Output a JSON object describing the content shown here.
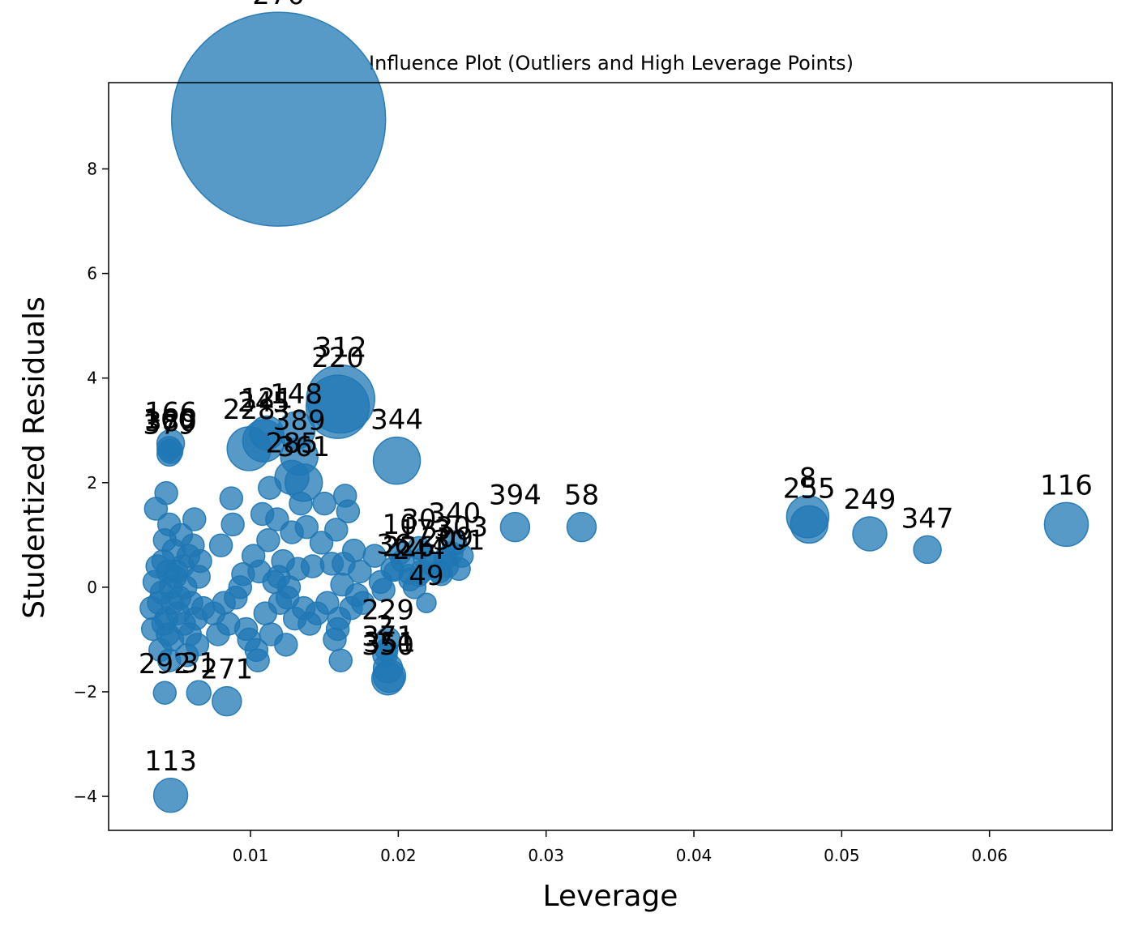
{
  "chart_data": {
    "type": "scatter",
    "title": "Influence Plot (Outliers and High Leverage Points)",
    "xlabel": "Leverage",
    "ylabel": "Studentized Residuals",
    "xlim": [
      0.0004,
      0.0683
    ],
    "ylim": [
      -4.65,
      9.65
    ],
    "xticks": [
      0.01,
      0.02,
      0.03,
      0.04,
      0.05,
      0.06
    ],
    "xtick_labels": [
      "0.01",
      "0.02",
      "0.03",
      "0.04",
      "0.05",
      "0.06"
    ],
    "yticks": [
      -4,
      -2,
      0,
      2,
      4,
      6,
      8
    ],
    "ytick_labels": [
      "−4",
      "−2",
      "0",
      "2",
      "4",
      "6",
      "8"
    ],
    "grid": false,
    "color": "#1f77b4",
    "labeled_points": [
      {
        "label": "270",
        "x": 0.0119,
        "y": 8.95,
        "size": 4.4
      },
      {
        "label": "312",
        "x": 0.0161,
        "y": 3.6,
        "size": 1.4
      },
      {
        "label": "220",
        "x": 0.0159,
        "y": 3.45,
        "size": 1.3
      },
      {
        "label": "166",
        "x": 0.0046,
        "y": 2.75,
        "size": 0.55
      },
      {
        "label": "160",
        "x": 0.0045,
        "y": 2.65,
        "size": 0.5
      },
      {
        "label": "380",
        "x": 0.0046,
        "y": 2.6,
        "size": 0.5
      },
      {
        "label": "379",
        "x": 0.0045,
        "y": 2.55,
        "size": 0.5
      },
      {
        "label": "121",
        "x": 0.0111,
        "y": 2.95,
        "size": 0.7
      },
      {
        "label": "148",
        "x": 0.0131,
        "y": 3.0,
        "size": 0.75
      },
      {
        "label": "245",
        "x": 0.0109,
        "y": 2.8,
        "size": 0.85
      },
      {
        "label": "228",
        "x": 0.0099,
        "y": 2.65,
        "size": 0.9
      },
      {
        "label": "389",
        "x": 0.0133,
        "y": 2.5,
        "size": 0.75
      },
      {
        "label": "285",
        "x": 0.0128,
        "y": 2.1,
        "size": 0.7
      },
      {
        "label": "361",
        "x": 0.0136,
        "y": 2.0,
        "size": 0.75
      },
      {
        "label": "344",
        "x": 0.0199,
        "y": 2.42,
        "size": 0.95
      },
      {
        "label": "394",
        "x": 0.0279,
        "y": 1.15,
        "size": 0.6
      },
      {
        "label": "58",
        "x": 0.0324,
        "y": 1.15,
        "size": 0.6
      },
      {
        "label": "340",
        "x": 0.0238,
        "y": 0.85,
        "size": 0.5
      },
      {
        "label": "30",
        "x": 0.0214,
        "y": 0.75,
        "size": 0.45
      },
      {
        "label": "10",
        "x": 0.0201,
        "y": 0.65,
        "size": 0.45
      },
      {
        "label": "173",
        "x": 0.0218,
        "y": 0.55,
        "size": 0.45
      },
      {
        "label": "303",
        "x": 0.0243,
        "y": 0.6,
        "size": 0.45
      },
      {
        "label": "209",
        "x": 0.0233,
        "y": 0.4,
        "size": 0.45
      },
      {
        "label": "301",
        "x": 0.0241,
        "y": 0.35,
        "size": 0.45
      },
      {
        "label": "36",
        "x": 0.0197,
        "y": 0.3,
        "size": 0.4
      },
      {
        "label": "226",
        "x": 0.0207,
        "y": 0.25,
        "size": 0.4
      },
      {
        "label": "244",
        "x": 0.0214,
        "y": 0.2,
        "size": 0.4
      },
      {
        "label": "49",
        "x": 0.0219,
        "y": -0.3,
        "size": 0.4
      },
      {
        "label": "8",
        "x": 0.0477,
        "y": 1.35,
        "size": 0.85
      },
      {
        "label": "255",
        "x": 0.0478,
        "y": 1.2,
        "size": 0.75
      },
      {
        "label": "249",
        "x": 0.0519,
        "y": 1.02,
        "size": 0.7
      },
      {
        "label": "347",
        "x": 0.0558,
        "y": 0.72,
        "size": 0.55
      },
      {
        "label": "116",
        "x": 0.0652,
        "y": 1.2,
        "size": 0.9
      },
      {
        "label": "229",
        "x": 0.0193,
        "y": -1.0,
        "size": 0.5
      },
      {
        "label": "2",
        "x": 0.0191,
        "y": -1.3,
        "size": 0.5
      },
      {
        "label": "371",
        "x": 0.0193,
        "y": -1.55,
        "size": 0.6
      },
      {
        "label": "351",
        "x": 0.0194,
        "y": -1.7,
        "size": 0.65
      },
      {
        "label": "350",
        "x": 0.0193,
        "y": -1.75,
        "size": 0.65
      },
      {
        "label": "292",
        "x": 0.0042,
        "y": -2.02,
        "size": 0.45
      },
      {
        "label": "31",
        "x": 0.0065,
        "y": -2.02,
        "size": 0.5
      },
      {
        "label": "271",
        "x": 0.0084,
        "y": -2.18,
        "size": 0.6
      },
      {
        "label": "113",
        "x": 0.0046,
        "y": -3.98,
        "size": 0.7
      }
    ],
    "unlabeled_points": [
      [
        0.0035,
        0.1
      ],
      [
        0.0038,
        -0.3
      ],
      [
        0.0041,
        0.5
      ],
      [
        0.0043,
        -0.6
      ],
      [
        0.0045,
        1.2
      ],
      [
        0.0047,
        -1.0
      ],
      [
        0.005,
        0.3
      ],
      [
        0.0052,
        -0.2
      ],
      [
        0.0036,
        1.5
      ],
      [
        0.0039,
        -1.2
      ],
      [
        0.0042,
        0.9
      ],
      [
        0.0044,
        -0.9
      ],
      [
        0.0046,
        0.0
      ],
      [
        0.0048,
        0.7
      ],
      [
        0.0051,
        -0.5
      ],
      [
        0.0053,
        1.0
      ],
      [
        0.0034,
        -0.8
      ],
      [
        0.0037,
        0.4
      ],
      [
        0.004,
        -0.1
      ],
      [
        0.0043,
        1.8
      ],
      [
        0.0045,
        -1.4
      ],
      [
        0.0049,
        0.2
      ],
      [
        0.0055,
        -0.7
      ],
      [
        0.0058,
        0.6
      ],
      [
        0.006,
        -0.3
      ],
      [
        0.0062,
        1.3
      ],
      [
        0.0064,
        -1.1
      ],
      [
        0.0066,
        0.5
      ],
      [
        0.0068,
        -0.4
      ],
      [
        0.0056,
        0.0
      ],
      [
        0.0059,
        -0.9
      ],
      [
        0.0061,
        0.8
      ],
      [
        0.0033,
        -0.4
      ],
      [
        0.0041,
        -0.7
      ],
      [
        0.0044,
        0.3
      ],
      [
        0.0047,
        -0.3
      ],
      [
        0.0054,
        0.4
      ],
      [
        0.0057,
        -1.3
      ],
      [
        0.0063,
        -0.6
      ],
      [
        0.0065,
        0.2
      ],
      [
        0.0075,
        -0.5
      ],
      [
        0.0078,
        -0.9
      ],
      [
        0.008,
        0.8
      ],
      [
        0.0082,
        -0.3
      ],
      [
        0.0085,
        -0.7
      ],
      [
        0.0088,
        1.2
      ],
      [
        0.0087,
        1.7
      ],
      [
        0.009,
        -0.2
      ],
      [
        0.0093,
        0.0
      ],
      [
        0.0095,
        0.25
      ],
      [
        0.0097,
        -0.8
      ],
      [
        0.0099,
        -1.0
      ],
      [
        0.0102,
        0.6
      ],
      [
        0.0104,
        -1.2
      ],
      [
        0.0106,
        0.3
      ],
      [
        0.0108,
        1.4
      ],
      [
        0.011,
        -0.5
      ],
      [
        0.0112,
        0.9
      ],
      [
        0.0114,
        -0.9
      ],
      [
        0.0116,
        0.1
      ],
      [
        0.0118,
        1.3
      ],
      [
        0.012,
        -0.3
      ],
      [
        0.0122,
        0.5
      ],
      [
        0.0124,
        -1.1
      ],
      [
        0.0126,
        0.0
      ],
      [
        0.0128,
        1.05
      ],
      [
        0.013,
        -0.6
      ],
      [
        0.0132,
        0.35
      ],
      [
        0.0134,
        1.6
      ],
      [
        0.0136,
        -0.4
      ],
      [
        0.0138,
        1.15
      ],
      [
        0.014,
        -0.7
      ],
      [
        0.0105,
        -1.4
      ],
      [
        0.0113,
        1.9
      ],
      [
        0.0119,
        0.2
      ],
      [
        0.0125,
        -0.2
      ],
      [
        0.0142,
        0.4
      ],
      [
        0.0145,
        -0.5
      ],
      [
        0.0148,
        0.85
      ],
      [
        0.015,
        1.6
      ],
      [
        0.0152,
        -0.3
      ],
      [
        0.0155,
        0.45
      ],
      [
        0.0158,
        1.1
      ],
      [
        0.016,
        -0.6
      ],
      [
        0.0162,
        0.05
      ],
      [
        0.0164,
        1.75
      ],
      [
        0.0166,
        1.45
      ],
      [
        0.0168,
        -0.4
      ],
      [
        0.017,
        0.7
      ],
      [
        0.0172,
        -0.15
      ],
      [
        0.0174,
        0.3
      ],
      [
        0.0176,
        -0.3
      ],
      [
        0.0157,
        -1.0
      ],
      [
        0.0161,
        -1.4
      ],
      [
        0.0159,
        -0.8
      ],
      [
        0.0163,
        0.45
      ],
      [
        0.0184,
        0.6
      ],
      [
        0.0188,
        0.1
      ],
      [
        0.019,
        -0.05
      ],
      [
        0.0192,
        -1.2
      ],
      [
        0.0196,
        0.35
      ],
      [
        0.0203,
        0.5
      ],
      [
        0.0208,
        0.15
      ],
      [
        0.0211,
        0.0
      ],
      [
        0.0216,
        0.3
      ],
      [
        0.0222,
        0.45
      ],
      [
        0.0228,
        0.3
      ],
      [
        0.0232,
        0.55
      ],
      [
        0.0236,
        0.65
      ],
      [
        0.0229,
        0.25
      ]
    ]
  }
}
